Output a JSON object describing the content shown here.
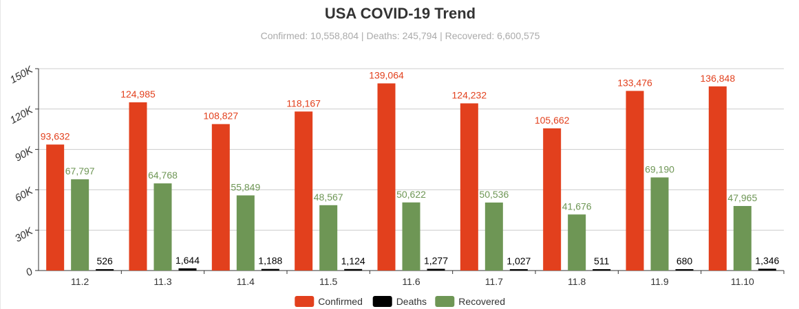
{
  "title": "USA COVID-19 Trend",
  "subtitle": "Confirmed: 10,558,804 | Deaths: 245,794 | Recovered: 6,600,575",
  "chart_data": {
    "type": "bar",
    "title": "USA COVID-19 Trend",
    "subtitle": "Confirmed: 10,558,804 | Deaths: 245,794 | Recovered: 6,600,575",
    "categories": [
      "11.2",
      "11.3",
      "11.4",
      "11.5",
      "11.6",
      "11.7",
      "11.8",
      "11.9",
      "11.10"
    ],
    "series": [
      {
        "name": "Confirmed",
        "color": "#e2401d",
        "values": [
          93632,
          124985,
          108827,
          118167,
          139064,
          124232,
          105662,
          133476,
          136848
        ],
        "labels": [
          "93,632",
          "124,985",
          "108,827",
          "118,167",
          "139,064",
          "124,232",
          "105,662",
          "133,476",
          "136,848"
        ]
      },
      {
        "name": "Recovered",
        "color": "#6e9655",
        "values": [
          67797,
          64768,
          55849,
          48567,
          50622,
          50536,
          41676,
          69190,
          47965
        ],
        "labels": [
          "67,797",
          "64,768",
          "55,849",
          "48,567",
          "50,622",
          "50,536",
          "41,676",
          "69,190",
          "47,965"
        ]
      },
      {
        "name": "Deaths",
        "color": "#000000",
        "values": [
          526,
          1644,
          1188,
          1124,
          1277,
          1027,
          511,
          680,
          1346
        ],
        "labels": [
          "526",
          "1,644",
          "1,188",
          "1,124",
          "1,277",
          "1,027",
          "511",
          "680",
          "1,346"
        ]
      }
    ],
    "ylim": [
      0,
      150000
    ],
    "yticks": [
      {
        "value": 0,
        "label": "0"
      },
      {
        "value": 30000,
        "label": "30K"
      },
      {
        "value": 60000,
        "label": "60K"
      },
      {
        "value": 90000,
        "label": "90K"
      },
      {
        "value": 120000,
        "label": "120K"
      },
      {
        "value": 150000,
        "label": "150K"
      }
    ],
    "grid": true,
    "legend_position": "bottom",
    "legend": [
      {
        "name": "Confirmed",
        "color": "#e2401d"
      },
      {
        "name": "Deaths",
        "color": "#000000"
      },
      {
        "name": "Recovered",
        "color": "#6e9655"
      }
    ]
  }
}
